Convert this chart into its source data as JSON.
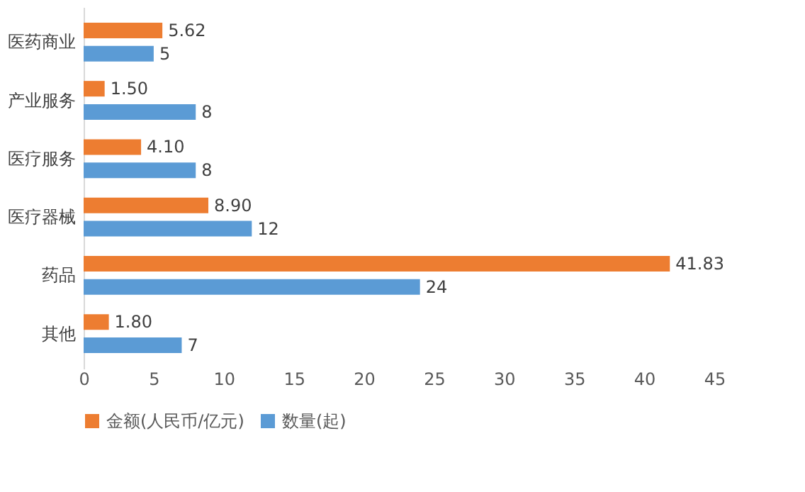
{
  "chart_data": {
    "type": "bar",
    "orientation": "horizontal",
    "categories": [
      "医药商业",
      "产业服务",
      "医疗服务",
      "医疗器械",
      "药品",
      "其他"
    ],
    "series": [
      {
        "name": "金额(人民币/亿元)",
        "color": "#ed7d31",
        "values": [
          5.62,
          1.5,
          4.1,
          8.9,
          41.83,
          1.8
        ],
        "value_labels": [
          "5.62",
          "1.50",
          "4.10",
          "8.90",
          "41.83",
          "1.80"
        ]
      },
      {
        "name": "数量(起)",
        "color": "#5b9bd5",
        "values": [
          5,
          8,
          8,
          12,
          24,
          7
        ],
        "value_labels": [
          "5",
          "8",
          "8",
          "12",
          "24",
          "7"
        ]
      }
    ],
    "xlim": [
      0,
      45
    ],
    "xticks": [
      0,
      5,
      10,
      15,
      20,
      25,
      30,
      35,
      40,
      45
    ],
    "grid": false,
    "legend": "bottom"
  }
}
